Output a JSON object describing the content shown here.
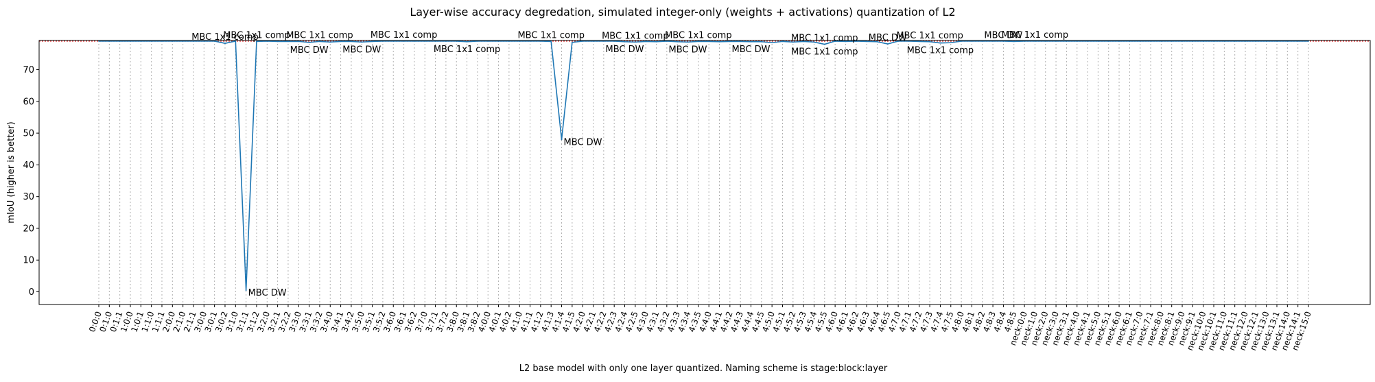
{
  "chart_data": {
    "type": "line",
    "title": "Layer-wise accuracy degredation, simulated integer-only (weights + activations) quantization of L2",
    "xlabel": "L2 base model with only one layer quantized. Naming scheme is stage:block:layer",
    "ylabel": "mIoU (higher is better)",
    "ylim": [
      -4,
      79.2
    ],
    "yticks": [
      0,
      10,
      20,
      30,
      40,
      50,
      60,
      70
    ],
    "grid": "x-dotted",
    "reference_line": {
      "value": 79.0,
      "style": "red dotted"
    },
    "categories": [
      "0:0:0",
      "0:1:0",
      "0:1:1",
      "1:0:0",
      "1:0:1",
      "1:1:0",
      "1:1:1",
      "2:0:0",
      "2:1:0",
      "2:1:1",
      "3:0:0",
      "3:0:1",
      "3:0:2",
      "3:1:0",
      "3:1:1",
      "3:1:2",
      "3:2:0",
      "3:2:1",
      "3:2:2",
      "3:3:0",
      "3:3:1",
      "3:3:2",
      "3:4:0",
      "3:4:1",
      "3:4:2",
      "3:5:0",
      "3:5:1",
      "3:5:2",
      "3:6:0",
      "3:6:1",
      "3:6:2",
      "3:7:0",
      "3:7:1",
      "3:7:2",
      "3:8:0",
      "3:8:1",
      "3:8:2",
      "4:0:0",
      "4:0:1",
      "4:0:2",
      "4:1:0",
      "4:1:1",
      "4:1:2",
      "4:1:3",
      "4:1:4",
      "4:1:5",
      "4:2:0",
      "4:2:1",
      "4:2:2",
      "4:2:3",
      "4:2:4",
      "4:2:5",
      "4:3:0",
      "4:3:1",
      "4:3:2",
      "4:3:3",
      "4:3:4",
      "4:3:5",
      "4:4:0",
      "4:4:1",
      "4:4:2",
      "4:4:3",
      "4:4:4",
      "4:4:5",
      "4:5:0",
      "4:5:1",
      "4:5:2",
      "4:5:3",
      "4:5:4",
      "4:5:5",
      "4:6:0",
      "4:6:1",
      "4:6:2",
      "4:6:3",
      "4:6:4",
      "4:6:5",
      "4:7:0",
      "4:7:1",
      "4:7:2",
      "4:7:3",
      "4:7:4",
      "4:7:5",
      "4:8:0",
      "4:8:1",
      "4:8:2",
      "4:8:3",
      "4:8:4",
      "4:8:5",
      "neck:0:0",
      "neck:1:0",
      "neck:2:0",
      "neck:3:0",
      "neck:3:1",
      "neck:4:0",
      "neck:4:1",
      "neck:5:0",
      "neck:5:1",
      "neck:6:0",
      "neck:6:1",
      "neck:7:0",
      "neck:7:1",
      "neck:8:0",
      "neck:8:1",
      "neck:9:0",
      "neck:9:1",
      "neck:10:0",
      "neck:10:1",
      "neck:11:0",
      "neck:11:1",
      "neck:12:0",
      "neck:12:1",
      "neck:13:0",
      "neck:13:1",
      "neck:14:0",
      "neck:14:1",
      "neck:15:0"
    ],
    "series": [
      {
        "color": "#1f77b4",
        "values": [
          79.0,
          79.0,
          79.0,
          79.0,
          79.0,
          79.0,
          79.0,
          79.0,
          79.0,
          79.0,
          79.0,
          79.0,
          78.3,
          79.0,
          0.5,
          78.9,
          79.0,
          78.9,
          78.9,
          78.9,
          78.6,
          78.9,
          78.7,
          78.9,
          78.9,
          78.7,
          78.9,
          79.0,
          79.0,
          79.0,
          79.0,
          79.0,
          79.0,
          79.0,
          79.0,
          78.8,
          79.0,
          79.0,
          79.0,
          79.0,
          79.0,
          79.0,
          79.0,
          78.9,
          48.0,
          78.6,
          79.0,
          79.0,
          79.0,
          79.0,
          78.8,
          78.7,
          78.9,
          78.8,
          79.0,
          78.8,
          78.7,
          78.9,
          78.9,
          78.8,
          78.9,
          78.9,
          78.8,
          78.8,
          78.5,
          78.9,
          78.7,
          78.9,
          78.7,
          78.0,
          79.0,
          78.9,
          79.0,
          78.9,
          78.8,
          78.1,
          79.0,
          79.0,
          78.9,
          78.8,
          78.4,
          78.5,
          79.0,
          79.0,
          79.0,
          79.0,
          79.0,
          78.9,
          79.0,
          79.0,
          79.0,
          79.0,
          79.0,
          79.0,
          79.0,
          79.0,
          79.0,
          79.0,
          79.0,
          79.0,
          79.0,
          79.0,
          79.0,
          79.0,
          79.0,
          79.0,
          79.0,
          79.0,
          79.0,
          79.0,
          79.0,
          79.0,
          79.0,
          79.0,
          79.0,
          79.0
        ]
      }
    ],
    "annotations": [
      {
        "text": "MBC 1x1 comp",
        "index": 12,
        "y": 78.3,
        "pos": "above"
      },
      {
        "text": "MBC DW",
        "index": 14,
        "y": 0.5,
        "pos": "right"
      },
      {
        "text": "MBC 1x1 comp",
        "index": 15,
        "y": 78.9,
        "pos": "above"
      },
      {
        "text": "MBC DW",
        "index": 20,
        "y": 78.6,
        "pos": "below"
      },
      {
        "text": "MBC 1x1 comp",
        "index": 21,
        "y": 78.9,
        "pos": "above"
      },
      {
        "text": "MBC DW",
        "index": 25,
        "y": 78.7,
        "pos": "below"
      },
      {
        "text": "MBC 1x1 comp",
        "index": 29,
        "y": 79.0,
        "pos": "above"
      },
      {
        "text": "MBC 1x1 comp",
        "index": 35,
        "y": 78.8,
        "pos": "below"
      },
      {
        "text": "MBC 1x1 comp",
        "index": 43,
        "y": 78.9,
        "pos": "above"
      },
      {
        "text": "MBC DW",
        "index": 44,
        "y": 48.0,
        "pos": "right"
      },
      {
        "text": "MBC 1x1 comp",
        "index": 51,
        "y": 78.7,
        "pos": "above"
      },
      {
        "text": "MBC DW",
        "index": 50,
        "y": 78.8,
        "pos": "below"
      },
      {
        "text": "MBC 1x1 comp",
        "index": 57,
        "y": 78.9,
        "pos": "above"
      },
      {
        "text": "MBC DW",
        "index": 56,
        "y": 78.7,
        "pos": "below"
      },
      {
        "text": "MBC DW",
        "index": 62,
        "y": 78.8,
        "pos": "below"
      },
      {
        "text": "MBC 1x1 comp",
        "index": 69,
        "y": 78.0,
        "pos": "above"
      },
      {
        "text": "MBC 1x1 comp",
        "index": 69,
        "y": 78.0,
        "pos": "below"
      },
      {
        "text": "MBC DW",
        "index": 75,
        "y": 78.1,
        "pos": "above"
      },
      {
        "text": "MBC 1x1 comp",
        "index": 79,
        "y": 78.8,
        "pos": "above"
      },
      {
        "text": "MBC 1x1 comp",
        "index": 80,
        "y": 78.4,
        "pos": "below"
      },
      {
        "text": "MBC DW",
        "index": 86,
        "y": 78.9,
        "pos": "above"
      },
      {
        "text": "MBC 1x1 comp",
        "index": 89,
        "y": 79.0,
        "pos": "above"
      }
    ]
  }
}
